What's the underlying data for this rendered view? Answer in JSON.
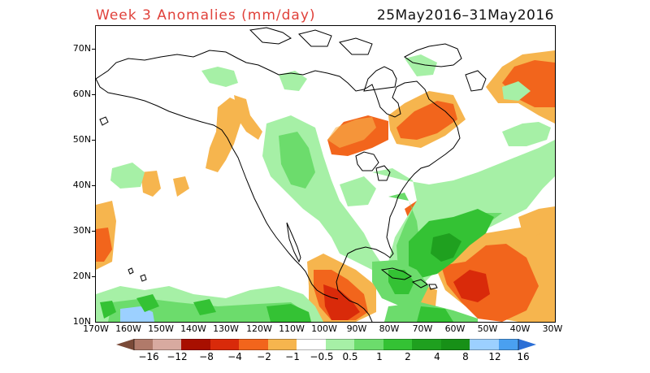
{
  "title": "Week 3 Anomalies (mm/day)",
  "date_range": "25May2016–31May2016",
  "lat_labels": [
    "70N",
    "60N",
    "50N",
    "40N",
    "30N",
    "20N",
    "10N"
  ],
  "lon_labels": [
    "170W",
    "160W",
    "150W",
    "140W",
    "130W",
    "120W",
    "110W",
    "100W",
    "90W",
    "80W",
    "70W",
    "60W",
    "50W",
    "40W",
    "30W"
  ],
  "colorbar": {
    "labels": [
      "−16",
      "−12",
      "−8",
      "−4",
      "−2",
      "−1",
      "−0.5",
      "0.5",
      "1",
      "2",
      "4",
      "8",
      "12",
      "16"
    ],
    "colors": [
      "#7a4a38",
      "#b07a6a",
      "#d8aaa0",
      "#a80f00",
      "#d92a0a",
      "#f2651c",
      "#f6b54e",
      "#ffffff",
      "#a6f0a6",
      "#6cdc6c",
      "#34c234",
      "#1fa01f",
      "#179017",
      "#9cd0ff",
      "#4aa0f0",
      "#2b6fd6"
    ]
  }
}
